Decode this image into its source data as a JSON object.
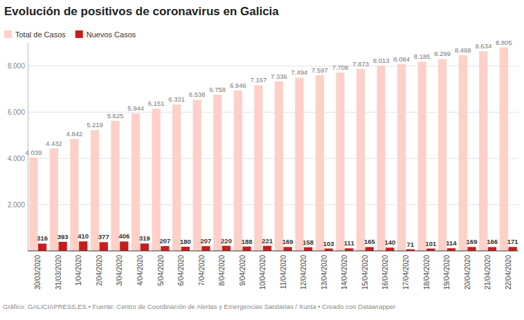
{
  "chart_data": {
    "type": "bar",
    "title": "Evolución de positivos de coronavirus en Galicia",
    "caption": "Gráfico: GALICIAPRESS.ES • Fuente: Centro de Coordinación de Alertas y Emergencias Sanitarias / Xunta • Creado con Datawrapper",
    "categories": [
      "30/03/2020",
      "31/03/2020",
      "1/04/2020",
      "2/04/2020",
      "3/04/2020",
      "4/04/2020",
      "5/04/2020",
      "6/04/2020",
      "7/04/2020",
      "8/04/2020",
      "9/04/2020",
      "10/04/2020",
      "11/04/2020",
      "12/04/2020",
      "13/04/2020",
      "14/04/2020",
      "15/04/2020",
      "16/04/2020",
      "17/04/2020",
      "18/04/2020",
      "19/04/2020",
      "20/04/2020",
      "21/04/2020",
      "22/04/2020"
    ],
    "series": [
      {
        "name": "Total de Casos",
        "color": "#fdd0c8",
        "values": [
          4039,
          4432,
          4842,
          5219,
          5625,
          5944,
          6151,
          6331,
          6538,
          6758,
          6946,
          7167,
          7336,
          7494,
          7597,
          7708,
          7873,
          8013,
          8084,
          8185,
          8299,
          8468,
          8634,
          8805
        ],
        "value_labels": [
          "4.039",
          "4.432",
          "4.842",
          "5.219",
          "5.625",
          "5.944",
          "6.151",
          "6.331",
          "6.538",
          "6.758",
          "6.946",
          "7.167",
          "7.336",
          "7.494",
          "7.597",
          "7.708",
          "7.873",
          "8.013",
          "8.084",
          "8.185",
          "8.299",
          "8.468",
          "8.634",
          "8.805"
        ]
      },
      {
        "name": "Nuevos Casos",
        "color": "#c71e1d",
        "values": [
          316,
          393,
          410,
          377,
          406,
          319,
          207,
          180,
          207,
          220,
          188,
          221,
          169,
          158,
          103,
          111,
          165,
          140,
          71,
          101,
          114,
          169,
          166,
          171
        ]
      }
    ],
    "ylim": [
      0,
      9000
    ],
    "yticks": [
      {
        "value": 2000,
        "label": "2.000"
      },
      {
        "value": 4000,
        "label": "4.000"
      },
      {
        "value": 6000,
        "label": "6.000"
      },
      {
        "value": 8000,
        "label": "8.000"
      }
    ],
    "grid": true,
    "legend": "top-left",
    "data_labels": true
  }
}
